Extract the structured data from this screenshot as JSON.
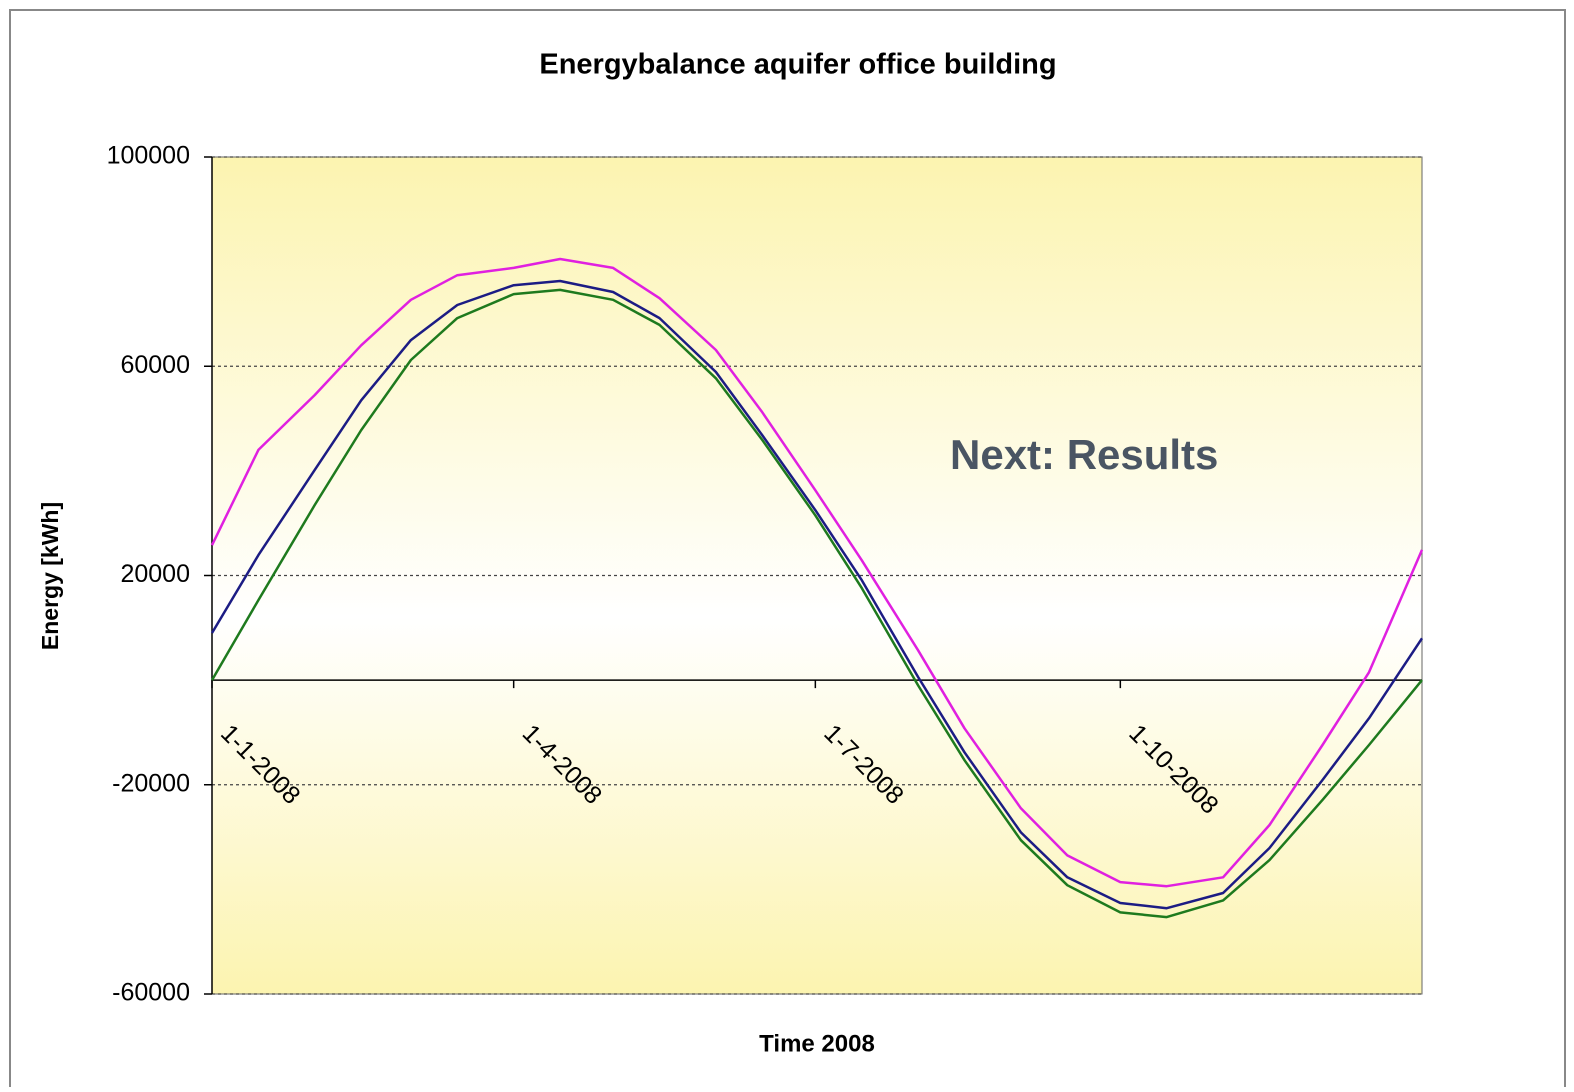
{
  "chart_data": {
    "type": "line",
    "title": "Energybalance aquifer office building",
    "x_label": "Time 2008",
    "y_label": "Energy [kWh]",
    "annotation": "Next: Results",
    "x": [
      "1-1-2008",
      "15-1-2008",
      "1-2-2008",
      "15-2-2008",
      "1-3-2008",
      "15-3-2008",
      "1-4-2008",
      "15-4-2008",
      "1-5-2008",
      "15-5-2008",
      "1-6-2008",
      "15-6-2008",
      "1-7-2008",
      "15-7-2008",
      "1-8-2008",
      "15-8-2008",
      "1-9-2008",
      "15-9-2008",
      "1-10-2008",
      "15-10-2008",
      "1-11-2008",
      "15-11-2008",
      "1-12-2008",
      "15-12-2008",
      "31-12-2008"
    ],
    "series": [
      {
        "color": "#1e7a1e",
        "values": [
          0,
          15300,
          33500,
          47800,
          61200,
          69200,
          73800,
          74600,
          72700,
          67900,
          57700,
          45900,
          31500,
          17600,
          -1000,
          -15300,
          -30600,
          -39200,
          -44400,
          -45300,
          -42100,
          -34400,
          -22900,
          -12400,
          0
        ]
      },
      {
        "color": "#1c1c84",
        "values": [
          9000,
          23900,
          40200,
          53500,
          65000,
          71700,
          75500,
          76300,
          74200,
          69200,
          58900,
          46800,
          32500,
          19100,
          600,
          -13800,
          -29100,
          -37700,
          -42600,
          -43600,
          -40700,
          -32100,
          -19100,
          -7300,
          8000
        ]
      },
      {
        "color": "#e020e0",
        "values": [
          25800,
          44000,
          54500,
          64000,
          72700,
          77400,
          78800,
          80500,
          78800,
          73000,
          63100,
          51200,
          36300,
          22900,
          5700,
          -9200,
          -24500,
          -33500,
          -38600,
          -39400,
          -37700,
          -27700,
          -12400,
          1500,
          24900
        ]
      }
    ],
    "xlim": [
      "1-1-2008",
      "31-12-2008"
    ],
    "xticks": [
      "1-1-2008",
      "1-4-2008",
      "1-7-2008",
      "1-10-2008"
    ],
    "ylim": [
      -60000,
      100000
    ],
    "yticks": [
      -60000,
      -20000,
      20000,
      60000,
      100000
    ],
    "grid": true
  }
}
